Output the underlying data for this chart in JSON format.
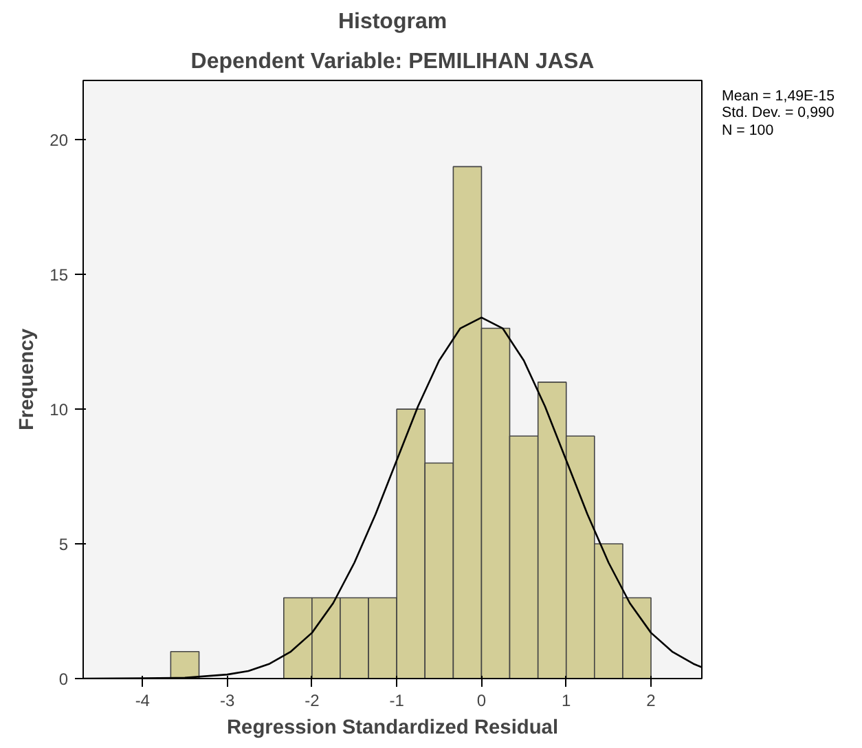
{
  "chart_data": {
    "type": "histogram",
    "title": "Histogram",
    "subtitle": "Dependent Variable: PEMILIHAN JASA",
    "xlabel": "Regression Standardized Residual",
    "ylabel": "Frequency",
    "xlim": [
      -4.7,
      2.6
    ],
    "ylim": [
      0,
      22.2
    ],
    "xticks": [
      -4,
      -3,
      -2,
      -1,
      0,
      1,
      2
    ],
    "yticks": [
      0,
      5,
      10,
      15,
      20
    ],
    "grid": false,
    "annotations": [
      "Mean = 1,49E-15",
      "Std. Dev. = 0,990",
      "N = 100"
    ],
    "series": [
      {
        "color": "#d3ce97",
        "bins": [
          -3.667,
          -3.333,
          -3.0,
          -2.667,
          -2.333,
          -2.0,
          -1.667,
          -1.333,
          -1.0,
          -0.667,
          -0.333,
          0.0,
          0.333,
          0.667,
          1.0,
          1.333,
          1.667,
          2.0
        ],
        "values": [
          1,
          0,
          0,
          0,
          3,
          3,
          3,
          3,
          10,
          8,
          19,
          13,
          9,
          11,
          9,
          5,
          3
        ]
      },
      {
        "type": "line",
        "color": "#000000",
        "x": [
          -4.7,
          -4,
          -3.5,
          -3,
          -2.75,
          -2.5,
          -2.25,
          -2,
          -1.75,
          -1.5,
          -1.25,
          -1,
          -0.75,
          -0.5,
          -0.25,
          0,
          0.25,
          0.5,
          0.75,
          1,
          1.25,
          1.5,
          1.75,
          2,
          2.25,
          2.5,
          2.6
        ],
        "values": [
          0,
          0.01,
          0.03,
          0.15,
          0.28,
          0.55,
          1.0,
          1.7,
          2.8,
          4.3,
          6.1,
          8.1,
          10.1,
          11.8,
          13.0,
          13.4,
          13.0,
          11.8,
          10.1,
          8.1,
          6.1,
          4.3,
          2.8,
          1.7,
          1.0,
          0.55,
          0.42
        ]
      }
    ]
  }
}
